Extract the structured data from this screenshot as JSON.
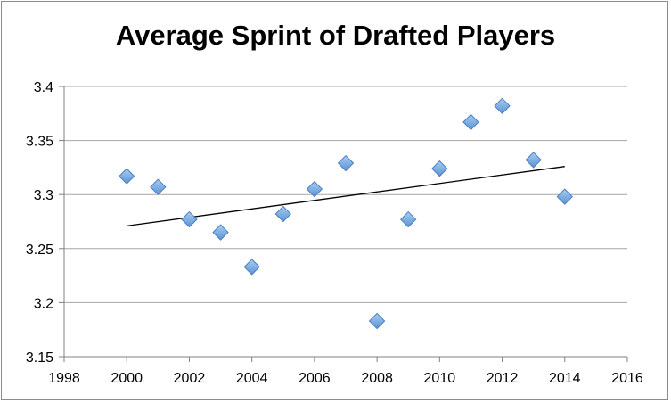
{
  "chart_data": {
    "type": "scatter",
    "title": "Average Sprint of Drafted Players",
    "xlabel": "",
    "ylabel": "",
    "xlim": [
      1998,
      2016
    ],
    "ylim": [
      3.15,
      3.4
    ],
    "x_ticks": [
      "1998",
      "2000",
      "2002",
      "2004",
      "2006",
      "2008",
      "2010",
      "2012",
      "2014",
      "2016"
    ],
    "y_ticks": [
      "3.15",
      "3.2",
      "3.25",
      "3.3",
      "3.35",
      "3.4"
    ],
    "grid": "horizontal",
    "legend": "none",
    "series": [
      {
        "x": [
          2000,
          2001,
          2002,
          2003,
          2004,
          2005,
          2006,
          2007,
          2008,
          2009,
          2010,
          2011,
          2012,
          2013,
          2014
        ],
        "y": [
          3.317,
          3.307,
          3.277,
          3.265,
          3.233,
          3.282,
          3.305,
          3.329,
          3.183,
          3.277,
          3.324,
          3.367,
          3.382,
          3.332,
          3.298
        ],
        "marker": "diamond",
        "color": "#5b9bd5"
      }
    ],
    "trendline": {
      "type": "linear",
      "from": [
        2000,
        3.271
      ],
      "to": [
        2014,
        3.326
      ],
      "color": "#000000"
    }
  }
}
